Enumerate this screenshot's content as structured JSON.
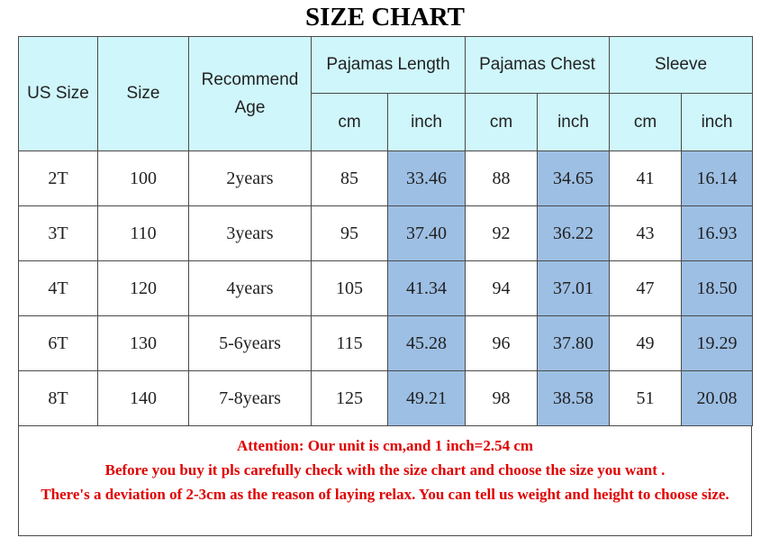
{
  "header": {
    "title": "SIZE CHART"
  },
  "table": {
    "groups": [
      "US Size",
      "Size",
      "Recommend Age",
      "Pajamas Length",
      "Pajamas Chest",
      "Sleeve"
    ],
    "units": [
      "cm",
      "inch",
      "cm",
      "inch",
      "cm",
      "inch"
    ],
    "rows": [
      [
        "2T",
        "100",
        "2years",
        "85",
        "33.46",
        "88",
        "34.65",
        "41",
        "16.14"
      ],
      [
        "3T",
        "110",
        "3years",
        "95",
        "37.40",
        "92",
        "36.22",
        "43",
        "16.93"
      ],
      [
        "4T",
        "120",
        "4years",
        "105",
        "41.34",
        "94",
        "37.01",
        "47",
        "18.50"
      ],
      [
        "6T",
        "130",
        "5-6years",
        "115",
        "45.28",
        "96",
        "37.80",
        "49",
        "19.29"
      ],
      [
        "8T",
        "140",
        "7-8years",
        "125",
        "49.21",
        "98",
        "38.58",
        "51",
        "20.08"
      ]
    ]
  },
  "notes": [
    "Attention: Our unit is cm,and 1 inch=2.54 cm",
    "Before you buy it pls carefully check with the size chart and choose the size you want .",
    "There's a deviation of 2-3cm as the reason of laying relax. You can tell us weight and height to choose size."
  ]
}
